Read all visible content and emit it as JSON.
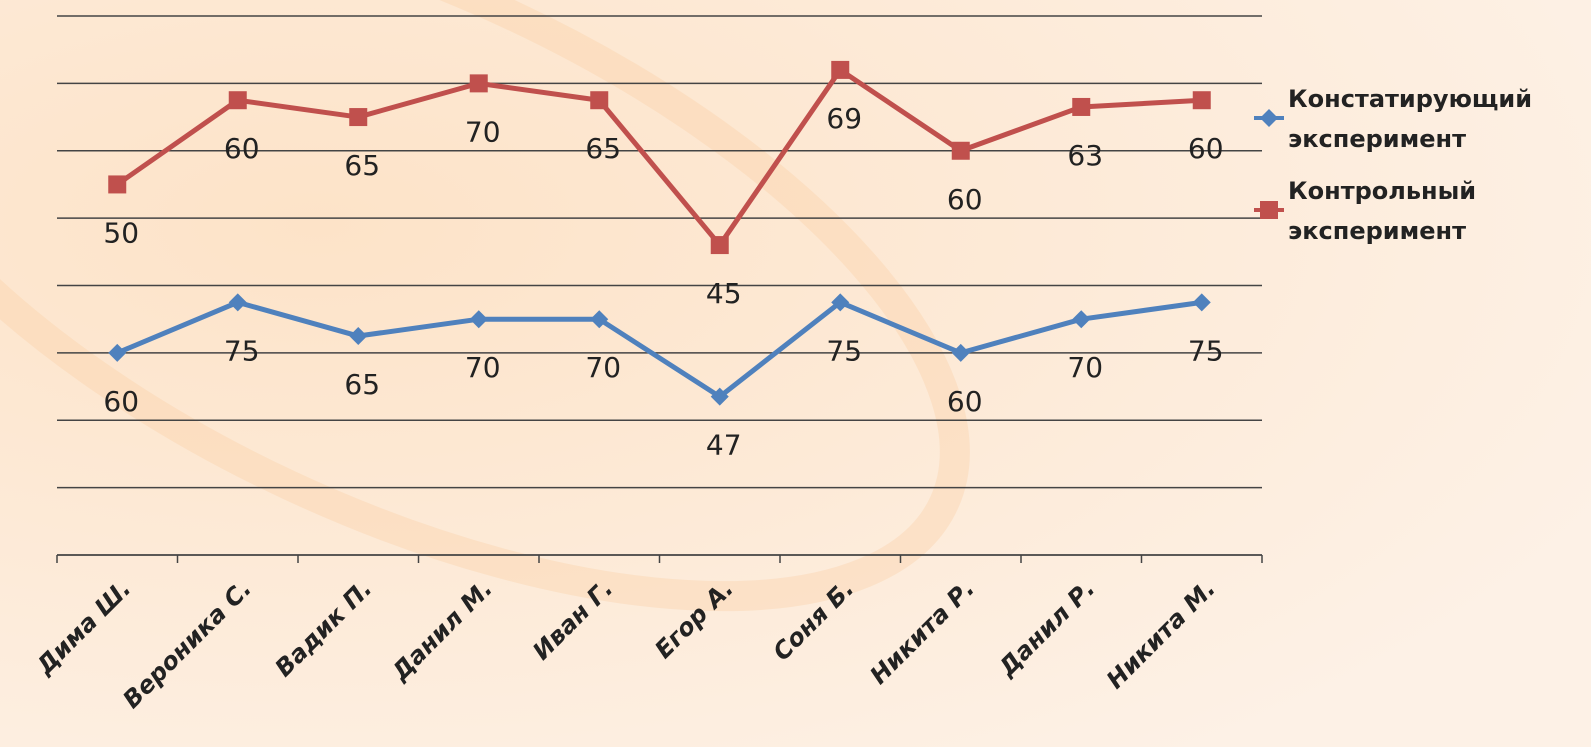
{
  "chart_data": {
    "type": "line",
    "stacked": true,
    "categories": [
      "Дима Ш.",
      "Вероника С.",
      "Вадик П.",
      "Данил М.",
      "Иван Г.",
      "Егор А.",
      "Соня Б.",
      "Никита Р.",
      "Данил Р.",
      "Никита М."
    ],
    "series": [
      {
        "name": "Констатирующий эксперимент",
        "color": "#4f81bd",
        "marker": "diamond",
        "values": [
          60,
          75,
          65,
          70,
          70,
          47,
          75,
          60,
          70,
          75
        ]
      },
      {
        "name": "Контрольный эксперимент",
        "color": "#c0504d",
        "marker": "square",
        "values": [
          50,
          60,
          65,
          70,
          65,
          45,
          69,
          60,
          63,
          60
        ]
      }
    ],
    "ylim": [
      0,
      160
    ],
    "yticks": [
      0,
      20,
      40,
      60,
      80,
      100,
      120,
      140,
      160
    ],
    "grid": true,
    "legend": "right"
  }
}
